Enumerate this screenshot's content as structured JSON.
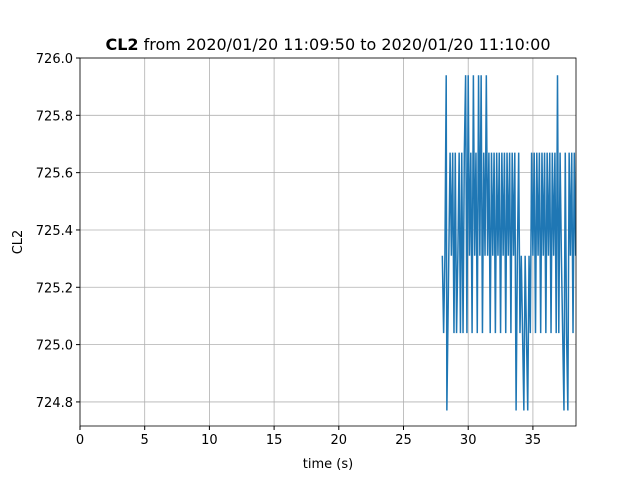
{
  "chart_data": {
    "type": "line",
    "title_bold": "CL2",
    "title": "from 2020/01/20 11:09:50 to 2020/01/20 11:10:00",
    "xlabel": "time (s)",
    "ylabel": "CL2",
    "x": [
      28.0,
      28.1,
      28.2,
      28.3,
      28.35,
      28.5,
      28.6,
      28.7,
      28.8,
      28.9,
      29.0,
      29.1,
      29.2,
      29.3,
      29.4,
      29.5,
      29.6,
      29.7,
      29.8,
      29.9,
      30.0,
      30.1,
      30.2,
      30.3,
      30.4,
      30.5,
      30.6,
      30.7,
      30.8,
      30.9,
      31.0,
      31.1,
      31.2,
      31.3,
      31.4,
      31.5,
      31.6,
      31.7,
      31.8,
      31.9,
      32.0,
      32.1,
      32.2,
      32.3,
      32.4,
      32.5,
      32.6,
      32.7,
      32.8,
      32.9,
      33.0,
      33.1,
      33.2,
      33.3,
      33.4,
      33.5,
      33.6,
      33.7,
      33.8,
      33.9,
      34.0,
      34.1,
      34.2,
      34.3,
      34.4,
      34.5,
      34.6,
      34.7,
      34.8,
      34.9,
      35.0,
      35.1,
      35.2,
      35.3,
      35.4,
      35.5,
      35.6,
      35.7,
      35.8,
      35.9,
      36.0,
      36.1,
      36.2,
      36.3,
      36.4,
      36.5,
      36.6,
      36.7,
      36.8,
      36.9,
      37.0,
      37.1,
      37.2,
      37.3,
      37.4,
      37.5,
      37.6,
      37.7,
      37.8,
      37.9,
      38.0,
      38.1,
      38.2,
      38.3
    ],
    "series": [
      {
        "color": "#1f77b4",
        "values": [
          725.31,
          725.04,
          725.31,
          725.94,
          724.77,
          725.31,
          725.67,
          725.31,
          725.67,
          725.04,
          725.67,
          725.04,
          725.31,
          725.67,
          725.04,
          725.67,
          725.04,
          725.67,
          725.94,
          725.04,
          725.94,
          725.31,
          725.67,
          725.04,
          725.94,
          725.31,
          725.67,
          725.04,
          725.94,
          725.31,
          725.94,
          725.04,
          725.67,
          725.31,
          725.94,
          725.31,
          725.67,
          725.04,
          725.67,
          725.31,
          725.67,
          725.04,
          725.67,
          725.31,
          725.67,
          725.04,
          725.67,
          725.31,
          725.67,
          725.04,
          725.67,
          725.31,
          725.67,
          725.04,
          725.67,
          725.31,
          725.67,
          724.77,
          725.31,
          725.67,
          725.04,
          725.31,
          725.04,
          724.77,
          725.31,
          725.04,
          724.77,
          725.31,
          725.04,
          725.67,
          725.31,
          725.67,
          725.04,
          725.67,
          725.31,
          725.67,
          725.04,
          725.67,
          725.31,
          725.67,
          725.04,
          725.67,
          725.31,
          725.67,
          725.04,
          725.67,
          725.31,
          725.67,
          725.04,
          725.94,
          725.04,
          725.67,
          725.31,
          725.04,
          724.77,
          725.67,
          725.04,
          724.77,
          725.67,
          725.31,
          725.67,
          725.04,
          725.67,
          725.31
        ]
      }
    ],
    "xlim": [
      0,
      38.33
    ],
    "ylim": [
      724.716,
      726.0
    ],
    "xticks": [
      0,
      5,
      10,
      15,
      20,
      25,
      30,
      35
    ],
    "yticks": [
      {
        "value": 726,
        "label": "726.0"
      },
      725.8,
      725.6,
      725.4,
      725.2,
      {
        "value": 725,
        "label": "725.0"
      },
      724.8
    ],
    "grid": true
  }
}
